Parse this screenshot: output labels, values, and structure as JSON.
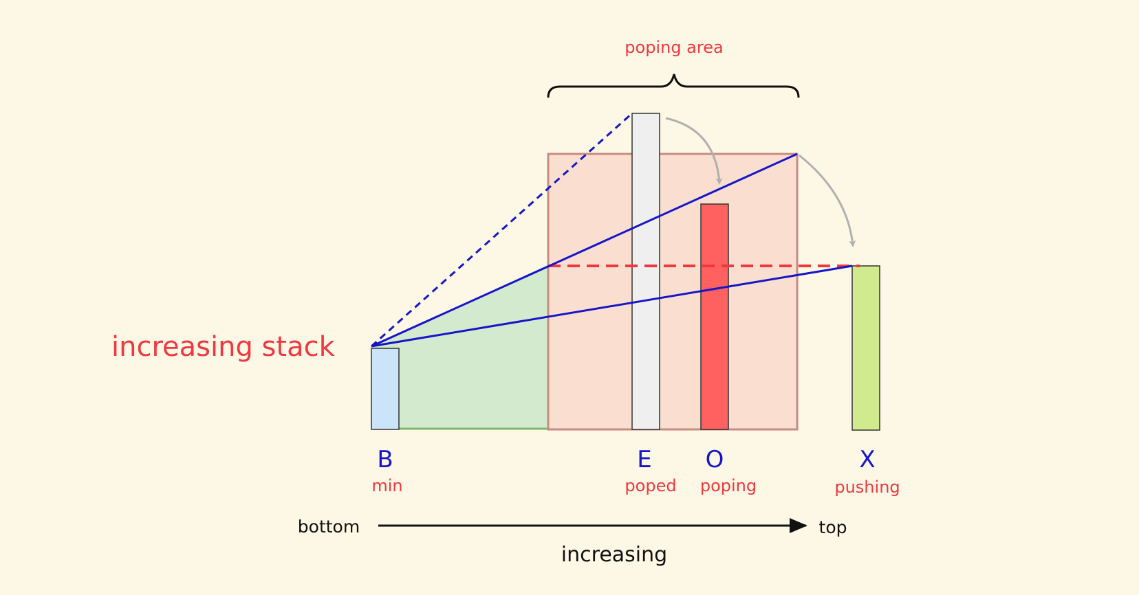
{
  "title": "increasing stack",
  "brace_label": "poping area",
  "bars": [
    {
      "letter": "B",
      "role": "min",
      "fill": "#cce4fa"
    },
    {
      "letter": "E",
      "role": "poped",
      "fill": "#efefef"
    },
    {
      "letter": "O",
      "role": "poping",
      "fill": "#ff6161"
    },
    {
      "letter": "X",
      "role": "pushing",
      "fill": "#cfeb8e"
    }
  ],
  "axis": {
    "start_label": "bottom",
    "end_label": "top",
    "direction_label": "increasing"
  },
  "colors": {
    "background": "#fdf8e6",
    "accent_red": "#f0383e",
    "accent_blue": "#1616c8",
    "poping_area_fill": "#f8c6bc",
    "covered_area_fill": "#c8e6c8",
    "arrow_gray": "#b0b0b0"
  }
}
